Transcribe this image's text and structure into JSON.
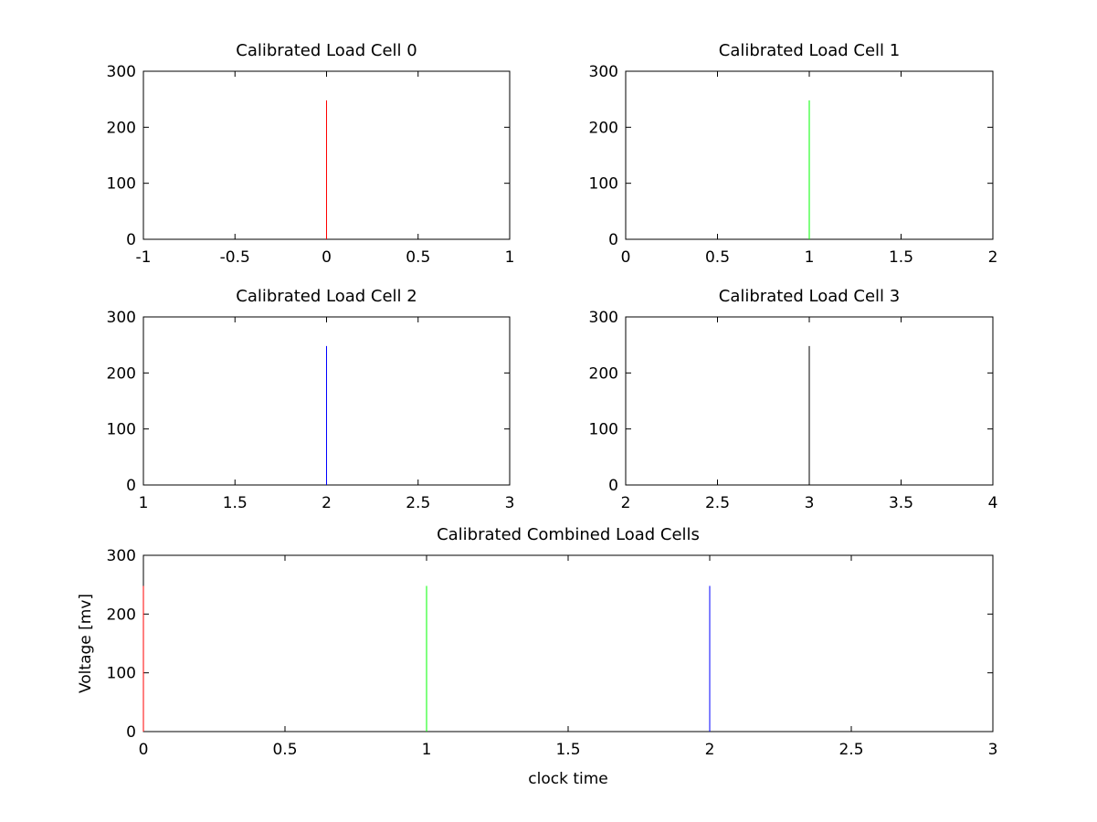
{
  "chart_data": [
    {
      "type": "line",
      "title": "Calibrated Load Cell 0",
      "xlabel": "",
      "ylabel": "",
      "xlim": [
        -1,
        1
      ],
      "ylim": [
        0,
        300
      ],
      "x_ticks": [
        "-1",
        "-0.5",
        "0",
        "0.5",
        "1"
      ],
      "y_ticks": [
        "0",
        "100",
        "200",
        "300"
      ],
      "series": [
        {
          "color": "#ff0000",
          "x": [
            0,
            0
          ],
          "y": [
            0,
            248
          ]
        }
      ]
    },
    {
      "type": "line",
      "title": "Calibrated Load Cell 1",
      "xlabel": "",
      "ylabel": "",
      "xlim": [
        0,
        2
      ],
      "ylim": [
        0,
        300
      ],
      "x_ticks": [
        "0",
        "0.5",
        "1",
        "1.5",
        "2"
      ],
      "y_ticks": [
        "0",
        "100",
        "200",
        "300"
      ],
      "series": [
        {
          "color": "#00ff00",
          "x": [
            1,
            1
          ],
          "y": [
            0,
            248
          ]
        }
      ]
    },
    {
      "type": "line",
      "title": "Calibrated Load Cell 2",
      "xlabel": "",
      "ylabel": "",
      "xlim": [
        1,
        3
      ],
      "ylim": [
        0,
        300
      ],
      "x_ticks": [
        "1",
        "1.5",
        "2",
        "2.5",
        "3"
      ],
      "y_ticks": [
        "0",
        "100",
        "200",
        "300"
      ],
      "series": [
        {
          "color": "#0000ff",
          "x": [
            2,
            2
          ],
          "y": [
            0,
            248
          ]
        }
      ]
    },
    {
      "type": "line",
      "title": "Calibrated Load Cell 3",
      "xlabel": "",
      "ylabel": "",
      "xlim": [
        2,
        4
      ],
      "ylim": [
        0,
        300
      ],
      "x_ticks": [
        "2",
        "2.5",
        "3",
        "3.5",
        "4"
      ],
      "y_ticks": [
        "0",
        "100",
        "200",
        "300"
      ],
      "series": [
        {
          "color": "#000000",
          "x": [
            3,
            3
          ],
          "y": [
            0,
            248
          ]
        }
      ]
    },
    {
      "type": "line",
      "title": "Calibrated Combined Load Cells",
      "xlabel": "clock time",
      "ylabel": "Voltage [mv]",
      "xlim": [
        0,
        3
      ],
      "ylim": [
        0,
        300
      ],
      "x_ticks": [
        "0",
        "0.5",
        "1",
        "1.5",
        "2",
        "2.5",
        "3"
      ],
      "y_ticks": [
        "0",
        "100",
        "200",
        "300"
      ],
      "series": [
        {
          "color": "#ff0000",
          "x": [
            0,
            0
          ],
          "y": [
            0,
            248
          ]
        },
        {
          "color": "#00ff00",
          "x": [
            1,
            1
          ],
          "y": [
            0,
            248
          ]
        },
        {
          "color": "#0000ff",
          "x": [
            2,
            2
          ],
          "y": [
            0,
            248
          ]
        },
        {
          "color": "#000000",
          "x": [
            3,
            3
          ],
          "y": [
            0,
            248
          ]
        }
      ]
    }
  ]
}
